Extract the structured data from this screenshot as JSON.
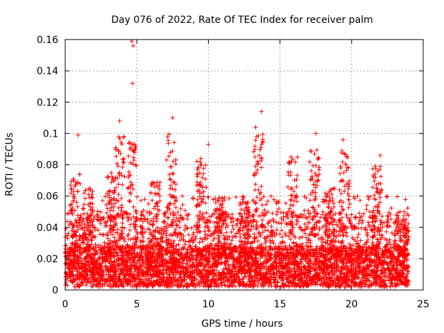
{
  "chart_data": {
    "type": "scatter",
    "title": "Day 076 of 2022, Rate Of TEC Index for receiver palm",
    "xlabel": "GPS time / hours",
    "ylabel": "ROTI / TECUs",
    "xlim": [
      0,
      25
    ],
    "ylim": [
      0,
      0.16
    ],
    "xticks": [
      0,
      5,
      10,
      15,
      20,
      25
    ],
    "yticks": [
      0,
      0.02,
      0.04,
      0.06,
      0.08,
      0.1,
      0.12,
      0.14,
      0.16
    ],
    "xtick_labels": [
      "0",
      "5",
      "10",
      "15",
      "20",
      "25"
    ],
    "ytick_labels": [
      "0",
      "0.02",
      "0.04",
      "0.06",
      "0.08",
      "0.1",
      "0.12",
      "0.14",
      "0.16"
    ],
    "grid": true,
    "marker": "+",
    "series_color": "#ff0000",
    "data_x_range": [
      0,
      24
    ],
    "bulk_range": [
      0.002,
      0.05
    ],
    "notable_points": [
      {
        "x": 4.65,
        "y": 0.159
      },
      {
        "x": 4.75,
        "y": 0.156
      },
      {
        "x": 4.7,
        "y": 0.132
      },
      {
        "x": 13.7,
        "y": 0.114
      },
      {
        "x": 7.5,
        "y": 0.11
      },
      {
        "x": 3.8,
        "y": 0.108
      },
      {
        "x": 13.3,
        "y": 0.104
      },
      {
        "x": 17.5,
        "y": 0.1
      },
      {
        "x": 0.9,
        "y": 0.099
      },
      {
        "x": 19.4,
        "y": 0.096
      },
      {
        "x": 10.0,
        "y": 0.093
      },
      {
        "x": 22.0,
        "y": 0.086
      }
    ],
    "activity_peaks": [
      {
        "x": 0.7,
        "amp": 0.075
      },
      {
        "x": 1.6,
        "amp": 0.065
      },
      {
        "x": 3.2,
        "amp": 0.075
      },
      {
        "x": 3.8,
        "amp": 0.1
      },
      {
        "x": 4.7,
        "amp": 0.095
      },
      {
        "x": 6.3,
        "amp": 0.07
      },
      {
        "x": 7.4,
        "amp": 0.1
      },
      {
        "x": 9.5,
        "amp": 0.085
      },
      {
        "x": 10.8,
        "amp": 0.06
      },
      {
        "x": 12.5,
        "amp": 0.06
      },
      {
        "x": 13.5,
        "amp": 0.1
      },
      {
        "x": 15.9,
        "amp": 0.085
      },
      {
        "x": 17.4,
        "amp": 0.09
      },
      {
        "x": 18.5,
        "amp": 0.065
      },
      {
        "x": 19.5,
        "amp": 0.09
      },
      {
        "x": 21.8,
        "amp": 0.08
      },
      {
        "x": 23.5,
        "amp": 0.045
      }
    ]
  }
}
